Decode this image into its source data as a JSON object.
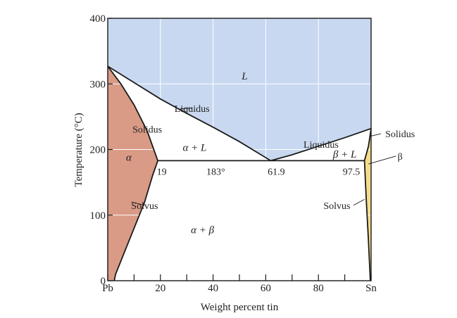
{
  "chart_data": {
    "type": "phase-diagram",
    "title": "",
    "xlabel": "Weight percent tin",
    "ylabel": "Temperature (°C)",
    "xlim": [
      0,
      100
    ],
    "ylim": [
      0,
      400
    ],
    "x_ticks": [
      {
        "value": 0,
        "label": "Pb"
      },
      {
        "value": 20,
        "label": "20"
      },
      {
        "value": 40,
        "label": "40"
      },
      {
        "value": 60,
        "label": "60"
      },
      {
        "value": 80,
        "label": "80"
      },
      {
        "value": 100,
        "label": "Sn"
      }
    ],
    "x_minor_ticks": [
      10,
      30,
      50,
      70,
      90
    ],
    "y_ticks": [
      {
        "value": 0,
        "label": "0"
      },
      {
        "value": 100,
        "label": "100"
      },
      {
        "value": 200,
        "label": "200"
      },
      {
        "value": 300,
        "label": "300"
      },
      {
        "value": 400,
        "label": "400"
      }
    ],
    "grid": true,
    "colors": {
      "liquid": "#c8d8f0",
      "alpha": "#d99a86",
      "beta": "#f5dc8c",
      "grid": "#ffffff",
      "line": "#1a1a1a"
    },
    "key_points": {
      "pb_melting": [
        0,
        327
      ],
      "sn_melting": [
        100,
        232
      ],
      "eutectic": [
        61.9,
        183
      ],
      "alpha_max_solubility": [
        19,
        183
      ],
      "beta_max_solubility": [
        97.5,
        183
      ]
    },
    "boundaries": {
      "liquidus_left": [
        [
          0,
          327
        ],
        [
          10,
          302
        ],
        [
          20,
          277
        ],
        [
          30,
          255
        ],
        [
          40,
          234
        ],
        [
          50,
          212
        ],
        [
          61.9,
          183
        ]
      ],
      "liquidus_right": [
        [
          61.9,
          183
        ],
        [
          70,
          192
        ],
        [
          80,
          205
        ],
        [
          90,
          218
        ],
        [
          100,
          232
        ]
      ],
      "solidus_alpha": [
        [
          0,
          327
        ],
        [
          5,
          300
        ],
        [
          10,
          268
        ],
        [
          15,
          228
        ],
        [
          19,
          183
        ]
      ],
      "solvus_alpha": [
        [
          19,
          183
        ],
        [
          17,
          160
        ],
        [
          14,
          120
        ],
        [
          10,
          80
        ],
        [
          6,
          40
        ],
        [
          3,
          10
        ],
        [
          2.5,
          0
        ]
      ],
      "solidus_beta": [
        [
          97.5,
          183
        ],
        [
          99,
          205
        ],
        [
          100,
          232
        ]
      ],
      "solvus_beta": [
        [
          97.5,
          183
        ],
        [
          98.2,
          120
        ],
        [
          99,
          60
        ],
        [
          99.7,
          0
        ]
      ],
      "eutectic_isotherm": [
        [
          19,
          183
        ],
        [
          97.5,
          183
        ]
      ]
    },
    "phase_labels": [
      {
        "text": "L",
        "x": 52,
        "y": 312
      },
      {
        "text": "α + L",
        "x": 33,
        "y": 203
      },
      {
        "text": "α",
        "x": 8,
        "y": 188
      },
      {
        "text": "β + L",
        "x": 90,
        "y": 193
      },
      {
        "text": "α + β",
        "x": 36,
        "y": 78
      }
    ],
    "annotations": [
      {
        "text": "Liquidus",
        "x": 32,
        "y": 263,
        "anchor": [
          27.5,
          262
        ]
      },
      {
        "text": "Solidus",
        "x": 15,
        "y": 231,
        "anchor": [
          14,
          236
        ]
      },
      {
        "text": "Liquidus",
        "x": 81,
        "y": 208,
        "anchor": [
          81,
          207
        ]
      },
      {
        "text": "19",
        "x": 20.5,
        "y": 167
      },
      {
        "text": "183°",
        "x": 41,
        "y": 167
      },
      {
        "text": "61.9",
        "x": 64,
        "y": 167
      },
      {
        "text": "97.5",
        "x": 92.5,
        "y": 167
      },
      {
        "text": "Solidus",
        "x": 111,
        "y": 224,
        "anchor": [
          99.5,
          220
        ]
      },
      {
        "text": "β",
        "x": 111,
        "y": 190,
        "anchor": [
          99,
          178
        ]
      },
      {
        "text": "Solvus",
        "x": 14,
        "y": 115,
        "anchor": [
          9,
          120
        ]
      },
      {
        "text": "Solvus",
        "x": 87,
        "y": 115,
        "anchor": [
          97.5,
          124
        ]
      }
    ]
  }
}
